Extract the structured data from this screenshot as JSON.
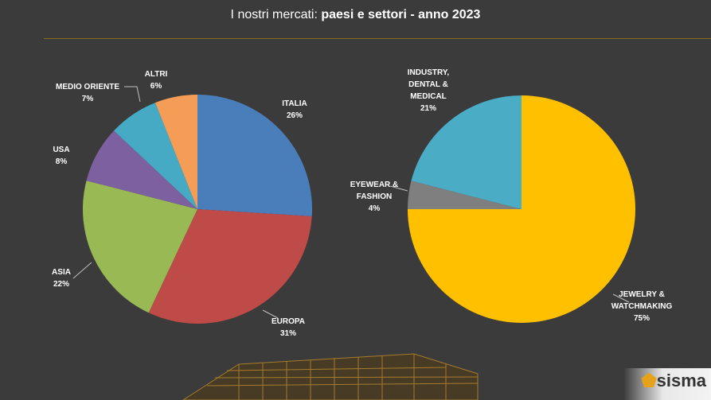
{
  "title": {
    "prefix": "I nostri mercati: ",
    "bold": "paesi e settori  - anno 2023"
  },
  "brand": {
    "mark": "⬟",
    "name": "sisma"
  },
  "chart_data": [
    {
      "type": "pie",
      "slices": [
        {
          "label": "ITALIA",
          "value": 26,
          "pct": "26%",
          "color": "#4a7ebb"
        },
        {
          "label": "EUROPA",
          "value": 31,
          "pct": "31%",
          "color": "#be4b48"
        },
        {
          "label": "ASIA",
          "value": 22,
          "pct": "22%",
          "color": "#98b954"
        },
        {
          "label": "USA",
          "value": 8,
          "pct": "8%",
          "color": "#7d60a0"
        },
        {
          "label": "MEDIO ORIENTE",
          "value": 7,
          "pct": "7%",
          "color": "#46aac5"
        },
        {
          "label": "ALTRI",
          "value": 6,
          "pct": "6%",
          "color": "#f59d56"
        }
      ]
    },
    {
      "type": "pie",
      "slices": [
        {
          "label": "JEWELRY & WATCHMAKING",
          "value": 75,
          "pct": "75%",
          "color": "#ffc000"
        },
        {
          "label": "EYEWEAR & FASHION",
          "value": 4,
          "pct": "4%",
          "color": "#7f7f7f"
        },
        {
          "label": "INDUSTRY, DENTAL & MEDICAL",
          "value": 21,
          "pct": "21%",
          "color": "#4bacc6"
        }
      ]
    }
  ]
}
